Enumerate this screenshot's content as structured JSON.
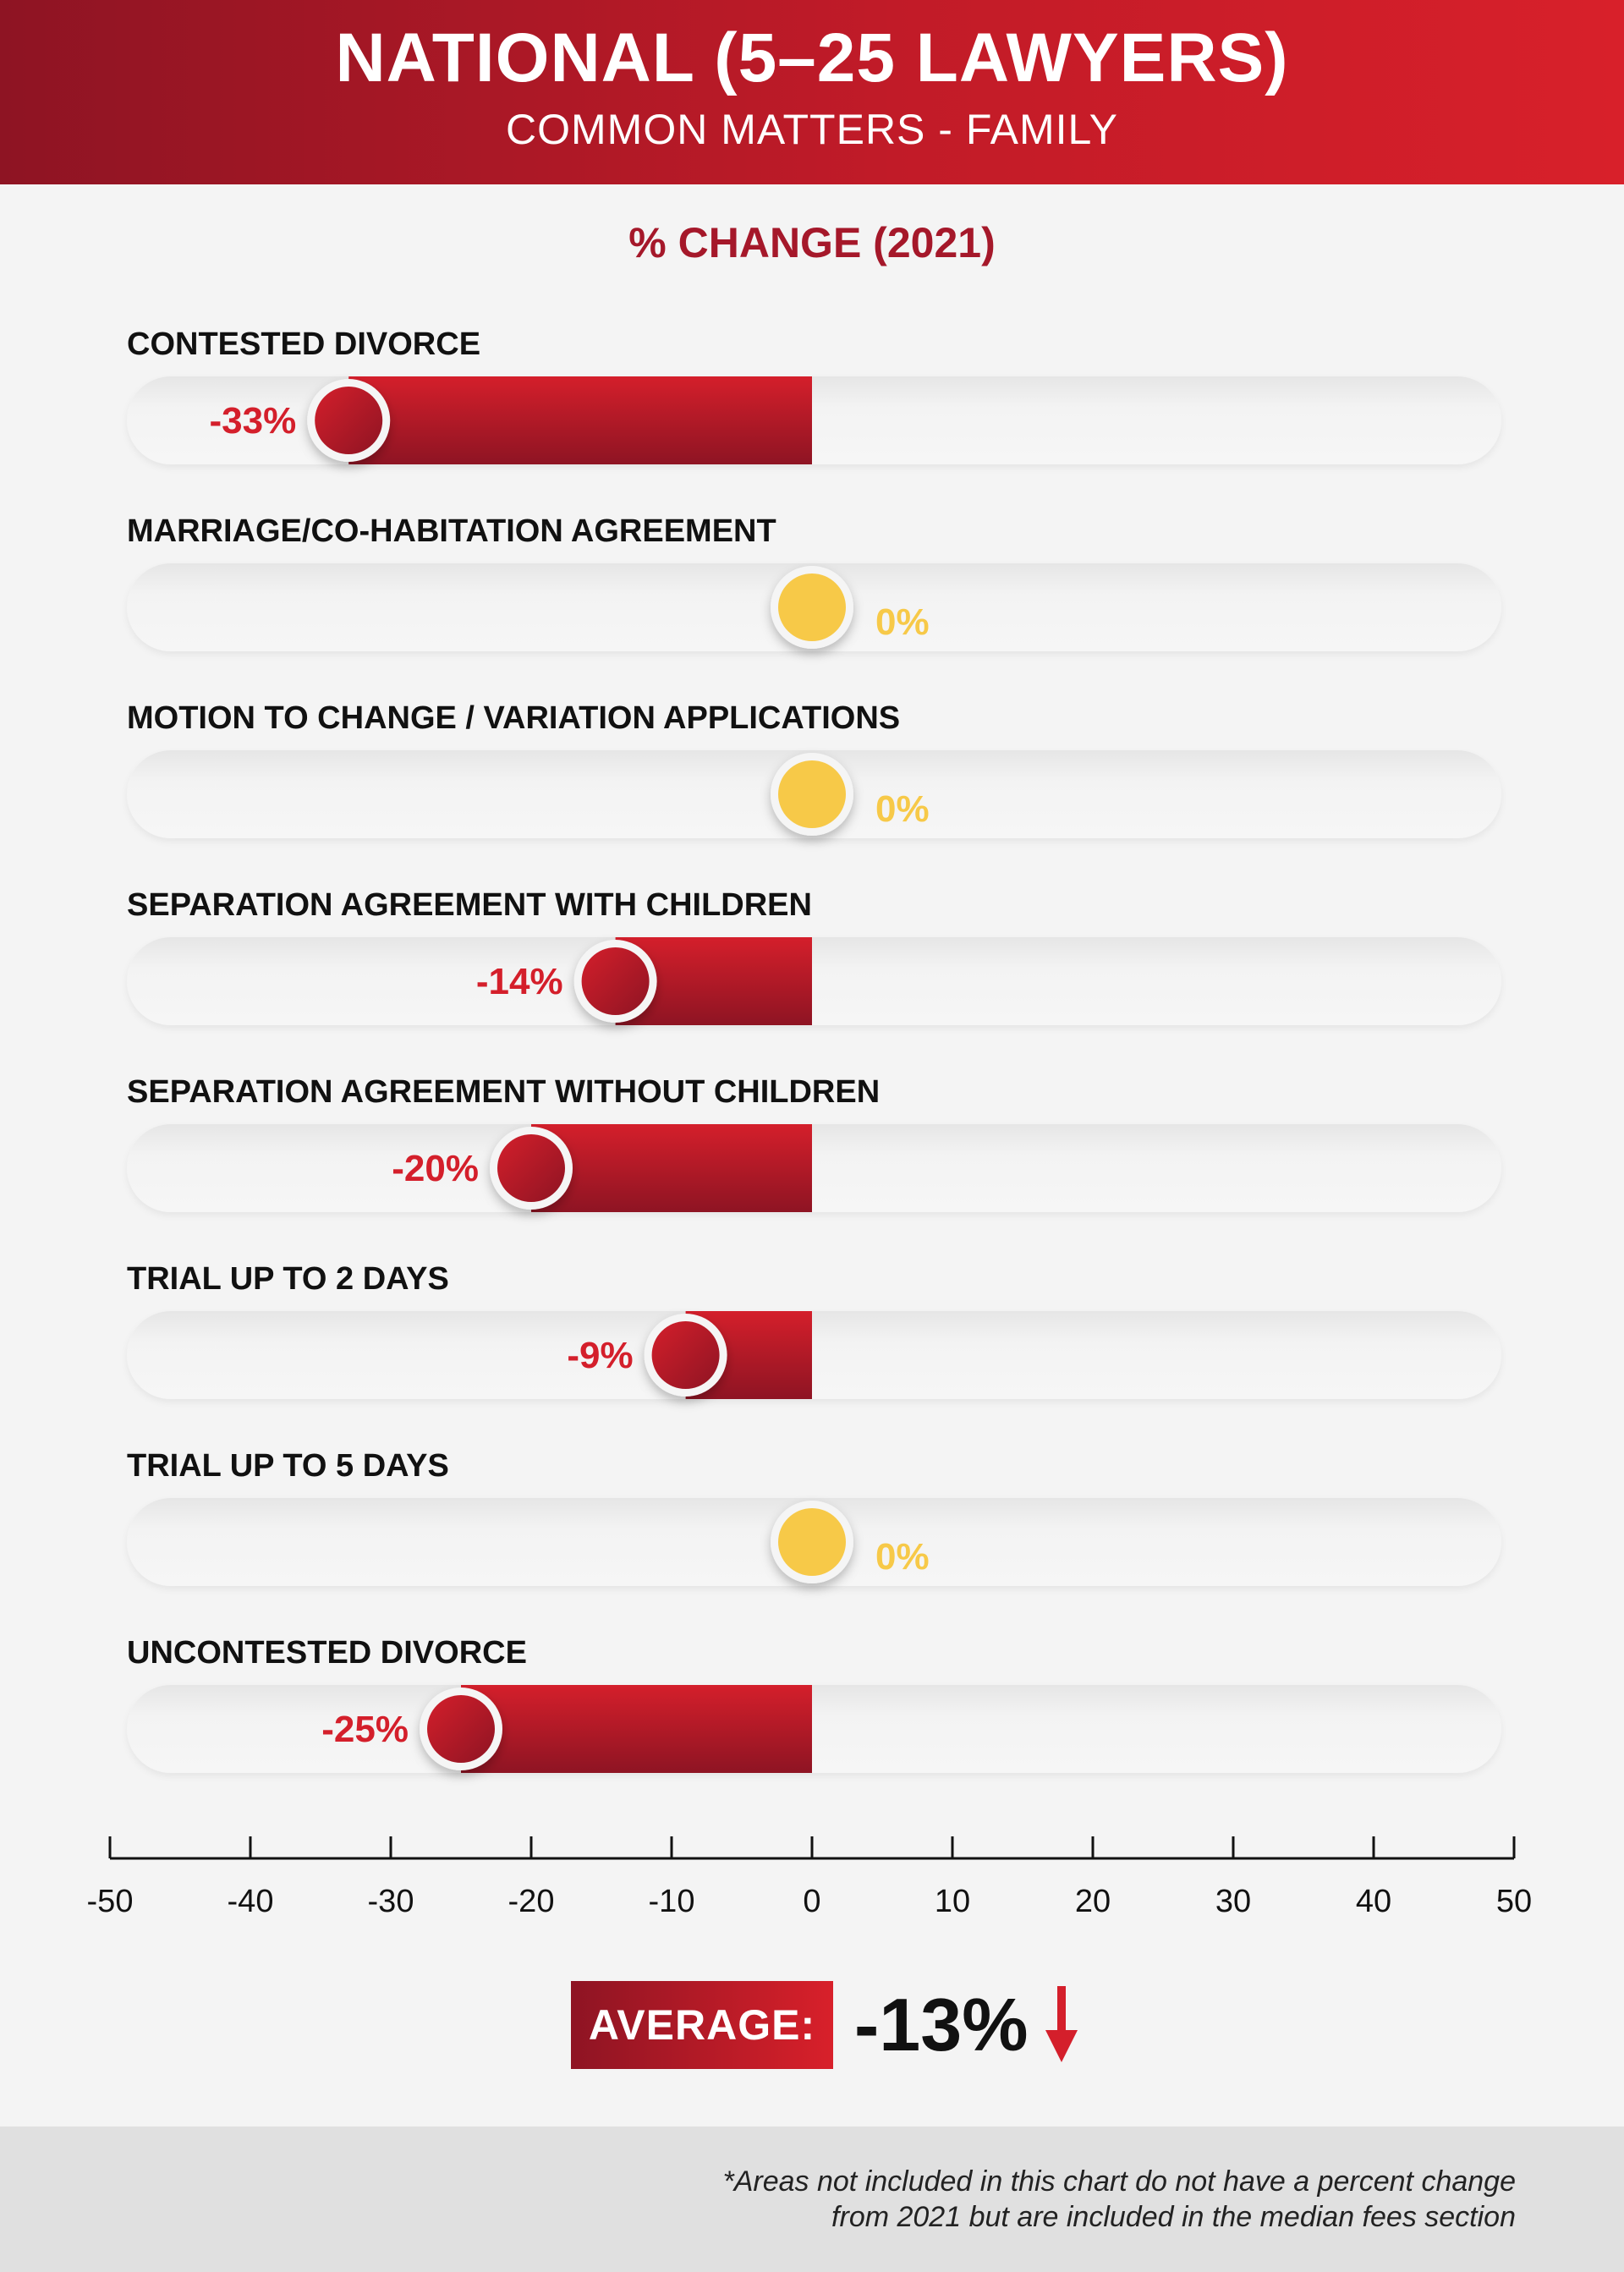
{
  "header": {
    "title": "NATIONAL (5–25 LAWYERS)",
    "subtitle": "COMMON MATTERS - FAMILY"
  },
  "chart_heading": "% CHANGE (2021)",
  "colors": {
    "negative": "#d41f2b",
    "negative_dark": "#8e1423",
    "zero": "#f7c948",
    "track": "#eeeeee"
  },
  "chart_data": {
    "type": "bar",
    "orientation": "horizontal",
    "title": "% CHANGE (2021)",
    "categories": [
      "CONTESTED DIVORCE",
      "MARRIAGE/CO-HABITATION AGREEMENT",
      "MOTION TO CHANGE / VARIATION APPLICATIONS",
      "SEPARATION AGREEMENT WITH CHILDREN",
      "SEPARATION AGREEMENT WITHOUT CHILDREN",
      "TRIAL UP TO 2 DAYS",
      "TRIAL UP TO 5 DAYS",
      "UNCONTESTED DIVORCE"
    ],
    "values": [
      -33,
      0,
      0,
      -14,
      -20,
      -9,
      0,
      -25
    ],
    "value_labels": [
      "-33%",
      "0%",
      "0%",
      "-14%",
      "-20%",
      "-9%",
      "0%",
      "-25%"
    ],
    "xlim": [
      -50,
      50
    ],
    "ticks": [
      -50,
      -40,
      -30,
      -20,
      -10,
      0,
      10,
      20,
      30,
      40,
      50
    ],
    "tick_labels": [
      "-50",
      "-40",
      "-30",
      "-20",
      "-10",
      "0",
      "10",
      "20",
      "30",
      "40",
      "50"
    ],
    "grid": false,
    "legend": "none"
  },
  "average": {
    "label": "AVERAGE:",
    "value": "-13%",
    "direction_icon": "down-arrow-icon"
  },
  "footer": {
    "note_line1": "*Areas not included in this chart do not have a percent change",
    "note_line2": "from 2021 but are included in the median fees section"
  }
}
